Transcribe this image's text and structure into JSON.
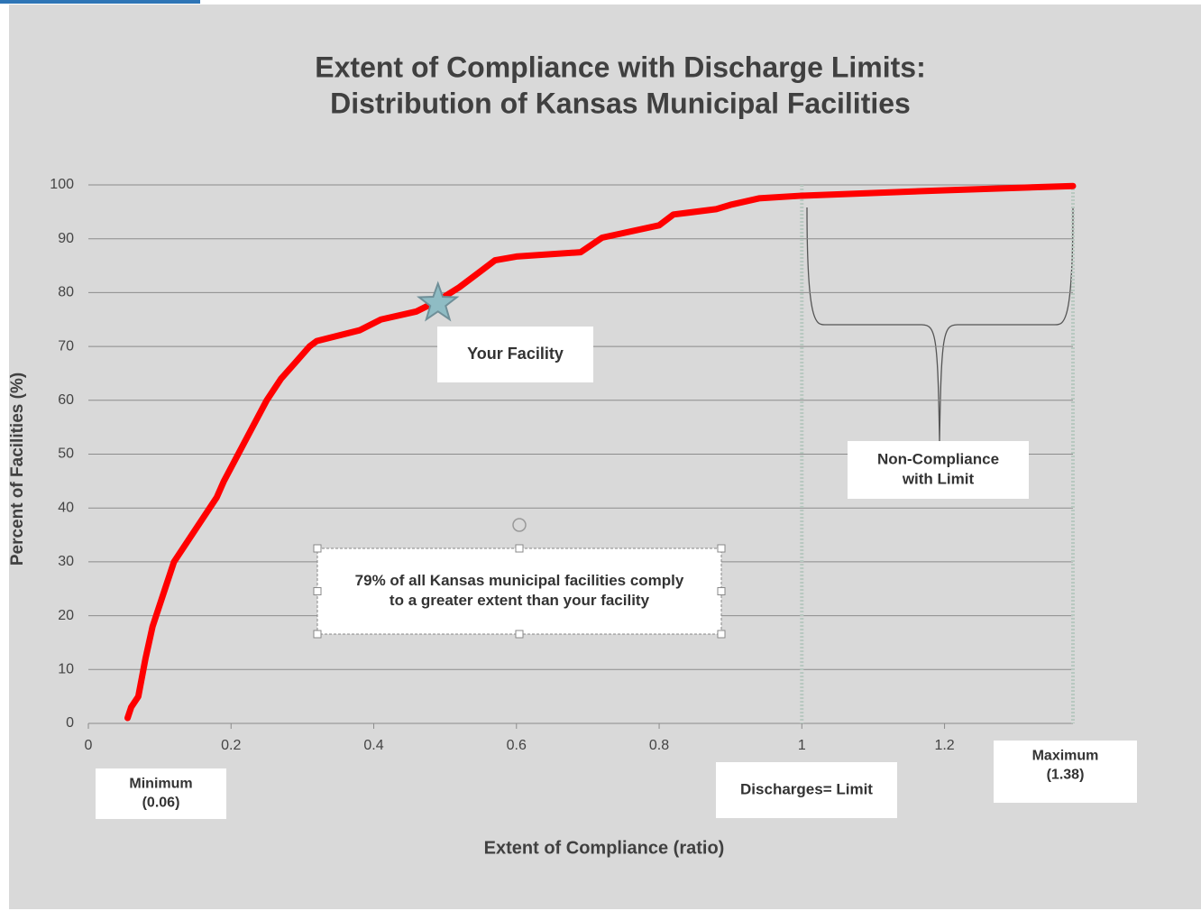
{
  "chart_data": {
    "type": "line",
    "title": [
      "Extent of Compliance with Discharge Limits:",
      "Distribution of Kansas Municipal Facilities"
    ],
    "x_label": "Extent of Compliance  (ratio)",
    "y_label": "Percent of Facilities (%)",
    "x": [
      0.055,
      0.06,
      0.07,
      0.08,
      0.09,
      0.1,
      0.11,
      0.12,
      0.14,
      0.16,
      0.18,
      0.19,
      0.21,
      0.23,
      0.25,
      0.27,
      0.29,
      0.31,
      0.32,
      0.38,
      0.41,
      0.46,
      0.49,
      0.52,
      0.55,
      0.57,
      0.6,
      0.69,
      0.72,
      0.8,
      0.82,
      0.88,
      0.9,
      0.94,
      1.0,
      1.2,
      1.38
    ],
    "series": [
      {
        "color": "#ff0000",
        "values": [
          1,
          3,
          5,
          12,
          18,
          22,
          26,
          30,
          34,
          38,
          42,
          45,
          50,
          55,
          60,
          64,
          67,
          70,
          71,
          73,
          75,
          76.5,
          78.5,
          81,
          84,
          86,
          86.7,
          87.5,
          90.2,
          92.5,
          94.5,
          95.5,
          96.3,
          97.5,
          98,
          99,
          99.8
        ]
      }
    ],
    "highlight": {
      "x": 0.49,
      "y": 78,
      "color": "#8fbcc4"
    },
    "reference_lines": [
      1,
      1.38
    ],
    "xlim": [
      0,
      1.38
    ],
    "ylim": [
      0,
      100
    ],
    "xticks": [
      0,
      0.2,
      0.4,
      0.6,
      0.8,
      1,
      1.2
    ],
    "yticks": [
      0,
      10,
      20,
      30,
      40,
      50,
      60,
      70,
      80,
      90,
      100
    ],
    "grid": true,
    "annotations": {
      "facility": [
        "Your Facility"
      ],
      "comply": [
        "79% of all Kansas municipal facilities comply",
        "to a greater extent than your facility"
      ],
      "noncompliance": [
        "Non-Compliance",
        "with Limit"
      ],
      "minimum": [
        "Minimum",
        "(0.06)"
      ],
      "limit": [
        "Discharges= Limit"
      ],
      "maximum": [
        "Maximum",
        "(1.38)"
      ]
    }
  }
}
